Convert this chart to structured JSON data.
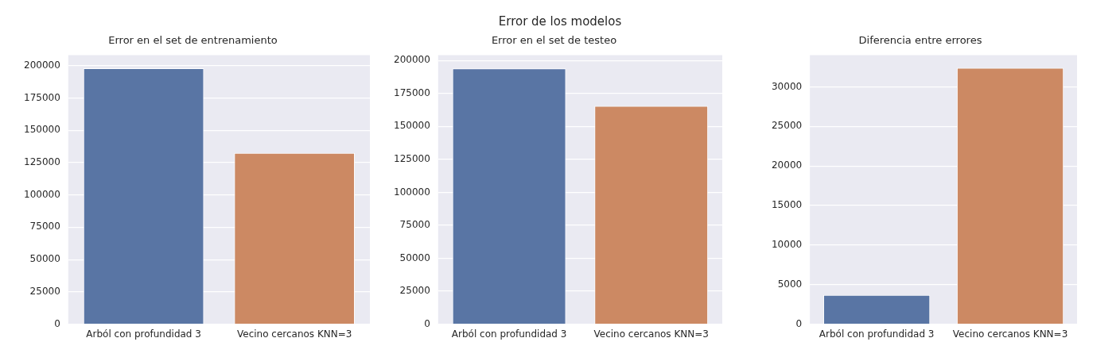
{
  "chart_data": [
    {
      "type": "bar",
      "title": "Error en el set de entrenamiento",
      "annotations": [
        "Error de los modelos"
      ],
      "categories": [
        "Arból con profundidad 3",
        "Vecino cercanos KNN=3"
      ],
      "values": [
        198000,
        132500
      ],
      "colors": [
        "#5975a4",
        "#cc8963"
      ],
      "ylim": [
        0,
        208000
      ],
      "yticks": [
        0,
        25000,
        50000,
        75000,
        100000,
        125000,
        150000,
        175000,
        200000
      ],
      "grid": "y"
    },
    {
      "type": "bar",
      "title": "Error en el set de testeo",
      "categories": [
        "Arból con profundidad 3",
        "Vecino cercanos KNN=3"
      ],
      "values": [
        194000,
        165500
      ],
      "colors": [
        "#5975a4",
        "#cc8963"
      ],
      "ylim": [
        0,
        204000
      ],
      "yticks": [
        0,
        25000,
        50000,
        75000,
        100000,
        125000,
        150000,
        175000,
        200000
      ],
      "grid": "y"
    },
    {
      "type": "bar",
      "title": "Diferencia entre errores",
      "categories": [
        "Arból con profundidad 3",
        "Vecino cercanos KNN=3"
      ],
      "values": [
        3700,
        32400
      ],
      "colors": [
        "#5975a4",
        "#cc8963"
      ],
      "ylim": [
        0,
        34000
      ],
      "yticks": [
        0,
        5000,
        10000,
        15000,
        20000,
        25000,
        30000
      ],
      "grid": "y"
    }
  ]
}
